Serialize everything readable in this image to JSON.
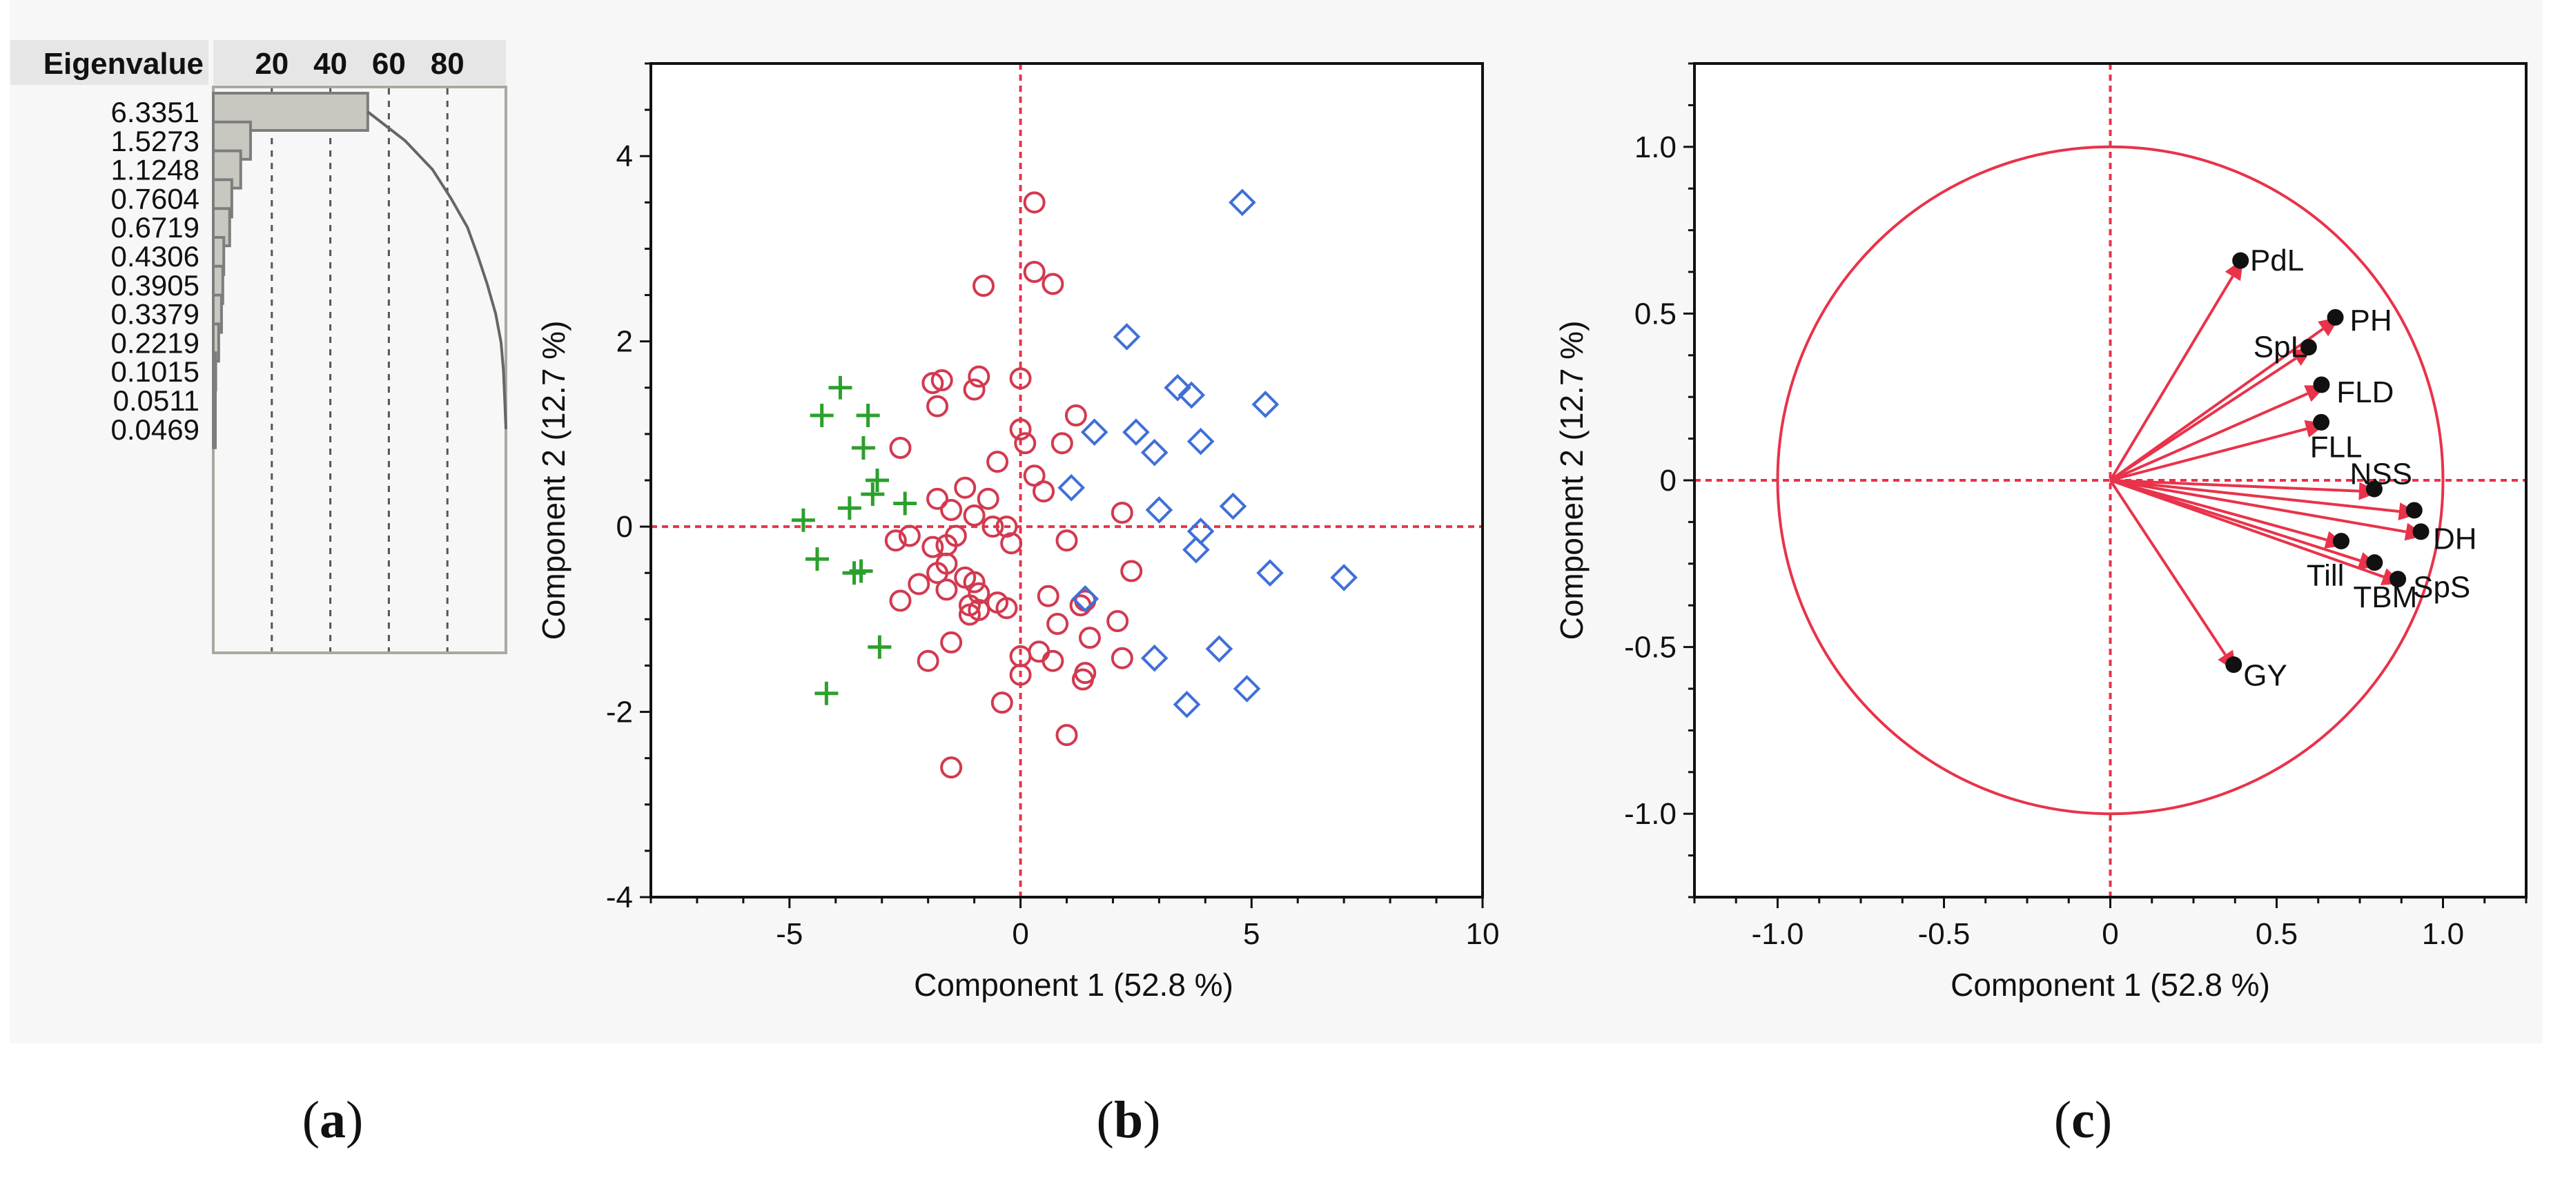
{
  "chart_data": [
    {
      "type": "bar",
      "name": "scree",
      "header_label": "Eigenvalue",
      "percent_ticks": [
        20,
        40,
        60,
        80
      ],
      "eigenvalues": [
        "6.3351",
        "1.5273",
        "1.1248",
        "0.7604",
        "0.6719",
        "0.4306",
        "0.3905",
        "0.3379",
        "0.2219",
        "0.1015",
        "0.0511",
        "0.0469"
      ],
      "values": [
        6.3351,
        1.5273,
        1.1248,
        0.7604,
        0.6719,
        0.4306,
        0.3905,
        0.3379,
        0.2219,
        0.1015,
        0.0511,
        0.0469
      ],
      "percent_range": [
        0,
        100
      ],
      "cumulative_line": true
    },
    {
      "type": "scatter",
      "name": "score_plot",
      "xlabel": "Component 1  (52.8 %)",
      "ylabel": "Component 2  (12.7 %)",
      "xlim": [
        -8,
        10
      ],
      "ylim": [
        -4,
        5
      ],
      "xticks": [
        -5,
        0,
        5,
        10
      ],
      "yticks": [
        -4,
        -2,
        0,
        2,
        4
      ],
      "series": [
        {
          "name": "cluster 1",
          "marker": "plus",
          "color": "#2ca02c",
          "points": [
            [
              -3.9,
              1.5
            ],
            [
              -3.3,
              1.2
            ],
            [
              -4.3,
              1.2
            ],
            [
              -3.4,
              0.85
            ],
            [
              -3.1,
              0.5
            ],
            [
              -3.2,
              0.35
            ],
            [
              -3.7,
              0.2
            ],
            [
              -2.5,
              0.25
            ],
            [
              -4.7,
              0.07
            ],
            [
              -4.4,
              -0.35
            ],
            [
              -3.6,
              -0.5
            ],
            [
              -3.45,
              -0.48
            ],
            [
              -3.05,
              -1.3
            ],
            [
              -4.2,
              -1.8
            ]
          ]
        },
        {
          "name": "cluster 2",
          "marker": "circle",
          "color": "#d23a4f",
          "points": [
            [
              0.3,
              3.5
            ],
            [
              0.3,
              2.75
            ],
            [
              0.7,
              2.62
            ],
            [
              -0.8,
              2.6
            ],
            [
              -1.7,
              1.58
            ],
            [
              -1.9,
              1.55
            ],
            [
              -1.8,
              1.3
            ],
            [
              -2.6,
              0.85
            ],
            [
              -1.0,
              1.48
            ],
            [
              -0.9,
              1.62
            ],
            [
              0.0,
              1.6
            ],
            [
              0.0,
              1.05
            ],
            [
              0.1,
              0.9
            ],
            [
              0.9,
              0.9
            ],
            [
              1.2,
              1.2
            ],
            [
              -0.5,
              0.7
            ],
            [
              0.3,
              0.55
            ],
            [
              0.5,
              0.38
            ],
            [
              -1.2,
              0.42
            ],
            [
              -1.8,
              0.3
            ],
            [
              -0.7,
              0.3
            ],
            [
              -1.0,
              0.12
            ],
            [
              -1.5,
              0.18
            ],
            [
              -0.6,
              0.0
            ],
            [
              -0.3,
              0.0
            ],
            [
              -2.4,
              -0.1
            ],
            [
              -1.4,
              -0.1
            ],
            [
              -2.7,
              -0.15
            ],
            [
              -1.6,
              -0.2
            ],
            [
              -1.9,
              -0.22
            ],
            [
              -0.2,
              -0.18
            ],
            [
              1.0,
              -0.15
            ],
            [
              2.2,
              0.15
            ],
            [
              -1.6,
              -0.4
            ],
            [
              -1.8,
              -0.5
            ],
            [
              -1.2,
              -0.55
            ],
            [
              -2.2,
              -0.62
            ],
            [
              -1.0,
              -0.6
            ],
            [
              -1.6,
              -0.68
            ],
            [
              -0.9,
              -0.72
            ],
            [
              2.4,
              -0.48
            ],
            [
              -2.6,
              -0.8
            ],
            [
              -1.1,
              -0.85
            ],
            [
              -0.9,
              -0.9
            ],
            [
              -1.1,
              -0.95
            ],
            [
              -0.5,
              -0.82
            ],
            [
              -0.3,
              -0.88
            ],
            [
              0.6,
              -0.75
            ],
            [
              1.4,
              -0.8
            ],
            [
              1.3,
              -0.85
            ],
            [
              0.8,
              -1.05
            ],
            [
              2.1,
              -1.02
            ],
            [
              -1.5,
              -1.25
            ],
            [
              0.0,
              -1.4
            ],
            [
              0.4,
              -1.35
            ],
            [
              0.7,
              -1.45
            ],
            [
              1.5,
              -1.2
            ],
            [
              2.2,
              -1.42
            ],
            [
              -2.0,
              -1.45
            ],
            [
              0.0,
              -1.6
            ],
            [
              1.4,
              -1.58
            ],
            [
              1.35,
              -1.65
            ],
            [
              -0.4,
              -1.9
            ],
            [
              1.0,
              -2.25
            ],
            [
              -1.5,
              -2.6
            ]
          ]
        },
        {
          "name": "cluster 3",
          "marker": "diamond",
          "color": "#3f6fd8",
          "points": [
            [
              4.8,
              3.5
            ],
            [
              2.3,
              2.05
            ],
            [
              3.4,
              1.5
            ],
            [
              3.7,
              1.42
            ],
            [
              5.3,
              1.32
            ],
            [
              1.6,
              1.02
            ],
            [
              2.5,
              1.02
            ],
            [
              3.9,
              0.92
            ],
            [
              2.9,
              0.8
            ],
            [
              1.1,
              0.42
            ],
            [
              3.0,
              0.18
            ],
            [
              4.6,
              0.22
            ],
            [
              3.9,
              -0.05
            ],
            [
              3.8,
              -0.25
            ],
            [
              5.4,
              -0.5
            ],
            [
              7.0,
              -0.55
            ],
            [
              1.4,
              -0.78
            ],
            [
              4.3,
              -1.32
            ],
            [
              2.9,
              -1.42
            ],
            [
              4.9,
              -1.75
            ],
            [
              3.6,
              -1.92
            ]
          ]
        }
      ]
    },
    {
      "type": "scatter",
      "name": "loading_plot",
      "xlabel": "Component 1  (52.8 %)",
      "ylabel": "Component 2  (12.7 %)",
      "xlim": [
        -1.25,
        1.25
      ],
      "ylim": [
        -1.25,
        1.25
      ],
      "xticks": [
        "-1.0",
        "-0.5",
        "0",
        "0.5",
        "1.0"
      ],
      "yticks": [
        "-1.0",
        "-0.5",
        "0",
        "0.5",
        "1.0"
      ],
      "unit_circle": true,
      "loadings": [
        {
          "label": "PdL",
          "x": 0.4,
          "y": 0.665,
          "dx": 0.02,
          "dy": -0.005
        },
        {
          "label": "PH",
          "x": 0.69,
          "y": 0.49,
          "dx": 0.03,
          "dy": -0.01
        },
        {
          "label": "SpL",
          "x": 0.61,
          "y": 0.4,
          "dx": -0.18,
          "dy": 0.0
        },
        {
          "label": "FLD",
          "x": 0.65,
          "y": 0.285,
          "dx": 0.03,
          "dy": -0.02
        },
        {
          "label": "FLL",
          "x": 0.65,
          "y": 0.17,
          "dx": -0.05,
          "dy": -0.07
        },
        {
          "label": "NSS",
          "x": 0.81,
          "y": -0.035,
          "dx": -0.09,
          "dy": 0.055
        },
        {
          "label": "DH",
          "x": 0.95,
          "y": -0.165,
          "dx": 0.02,
          "dy": -0.01
        },
        {
          "label": "Till",
          "x": 0.71,
          "y": -0.195,
          "dx": -0.12,
          "dy": -0.09
        },
        {
          "label": "TBM",
          "x": 0.81,
          "y": -0.26,
          "dx": -0.08,
          "dy": -0.09
        },
        {
          "label": "SpS",
          "x": 0.88,
          "y": -0.31,
          "dx": 0.03,
          "dy": -0.01
        },
        {
          "label": "GY",
          "x": 0.38,
          "y": -0.575,
          "dx": 0.02,
          "dy": -0.01
        },
        {
          "label": "",
          "x": 0.93,
          "y": -0.1,
          "dx": 0.0,
          "dy": 0.0
        }
      ],
      "color": "#e8334a"
    }
  ],
  "captions": {
    "a": "a",
    "b": "b",
    "c": "c"
  },
  "colors": {
    "bar_fill": "#c8c8c0",
    "bar_stroke": "#7d7d7d",
    "accent": "#e8334a",
    "panel": "#f7f7f7"
  }
}
